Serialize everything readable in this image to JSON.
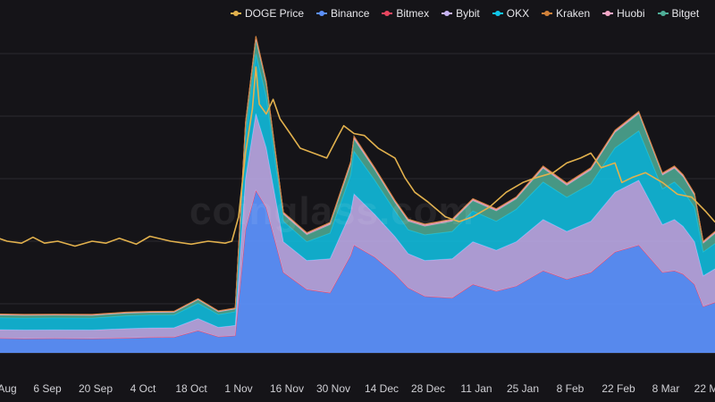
{
  "watermark": "coinglass.com",
  "legend": [
    {
      "name": "DOGE Price",
      "color": "#e2b14d"
    },
    {
      "name": "Binance",
      "color": "#5b8ff9"
    },
    {
      "name": "Bitmex",
      "color": "#e8465f"
    },
    {
      "name": "Bybit",
      "color": "#c6b2f2"
    },
    {
      "name": "OKX",
      "color": "#11c4e8"
    },
    {
      "name": "Kraken",
      "color": "#d0813a"
    },
    {
      "name": "Huobi",
      "color": "#f4a6c6"
    },
    {
      "name": "Bitget",
      "color": "#4fae98"
    }
  ],
  "chart_data": {
    "type": "area",
    "x_ticks": [
      "Aug",
      "6 Sep",
      "20 Sep",
      "4 Oct",
      "18 Oct",
      "1 Nov",
      "16 Nov",
      "30 Nov",
      "14 Dec",
      "28 Dec",
      "11 Jan",
      "25 Jan",
      "8 Feb",
      "22 Feb",
      "8 Mar",
      "22 M"
    ],
    "grid": true,
    "legend_position": "top",
    "stack_order": [
      "Binance",
      "Bitmex",
      "Bybit",
      "OKX",
      "Bitget",
      "Huobi",
      "Kraken"
    ],
    "days": [
      -9,
      -3,
      6,
      16,
      27,
      37,
      44,
      51,
      58,
      64,
      69,
      72,
      75,
      78,
      83,
      90,
      97,
      103,
      104,
      110,
      116,
      120,
      125,
      133,
      139,
      146,
      152,
      160,
      167,
      174,
      181,
      188,
      195,
      199,
      202,
      206,
      209,
      214,
      219,
      224,
      229,
      233
    ],
    "series": [
      {
        "name": "Binance",
        "values": [
          0.89,
          0.85,
          0.83,
          0.84,
          0.83,
          0.86,
          0.9,
          0.91,
          1.3,
          0.94,
          1.0,
          7.2,
          9.5,
          8.5,
          4.7,
          3.7,
          3.5,
          5.7,
          6.3,
          5.6,
          4.6,
          3.8,
          3.3,
          3.2,
          4.0,
          3.6,
          3.9,
          4.8,
          4.3,
          4.7,
          5.9,
          6.3,
          4.7,
          4.8,
          4.6,
          4.0,
          2.7,
          3.0,
          2.4,
          2.7,
          2.3,
          2.5
        ]
      },
      {
        "name": "Bitmex",
        "values": [
          0.01,
          0.01,
          0.01,
          0.01,
          0.01,
          0.01,
          0.01,
          0.01,
          0.01,
          0.01,
          0.01,
          0.03,
          0.03,
          0.03,
          0.02,
          0.02,
          0.02,
          0.02,
          0.02,
          0.02,
          0.02,
          0.02,
          0.02,
          0.02,
          0.02,
          0.02,
          0.02,
          0.02,
          0.02,
          0.02,
          0.02,
          0.02,
          0.02,
          0.02,
          0.02,
          0.02,
          0.02,
          0.02,
          0.02,
          0.02,
          0.02,
          0.02
        ]
      },
      {
        "name": "Bybit",
        "values": [
          0.5,
          0.5,
          0.5,
          0.5,
          0.5,
          0.55,
          0.55,
          0.55,
          0.7,
          0.55,
          0.6,
          3.0,
          4.5,
          3.5,
          1.8,
          1.7,
          2.0,
          2.5,
          3.0,
          2.5,
          2.2,
          2.0,
          2.1,
          2.3,
          2.5,
          2.4,
          2.6,
          3.0,
          2.8,
          3.0,
          3.5,
          3.8,
          2.8,
          3.0,
          2.8,
          2.5,
          1.8,
          2.0,
          1.8,
          1.9,
          1.8,
          1.9
        ]
      },
      {
        "name": "OKX",
        "values": [
          0.7,
          0.7,
          0.7,
          0.7,
          0.7,
          0.75,
          0.75,
          0.75,
          0.9,
          0.75,
          0.8,
          2.5,
          3.5,
          3.0,
          1.2,
          1.1,
          1.5,
          2.2,
          2.5,
          2.0,
          1.5,
          1.4,
          1.5,
          1.6,
          1.8,
          1.7,
          1.9,
          2.2,
          2.0,
          2.2,
          2.6,
          2.9,
          2.1,
          2.2,
          2.1,
          2.0,
          1.4,
          1.5,
          1.4,
          1.4,
          1.3,
          1.4
        ]
      },
      {
        "name": "Bitget",
        "values": [
          0.15,
          0.15,
          0.15,
          0.15,
          0.15,
          0.15,
          0.15,
          0.15,
          0.2,
          0.15,
          0.15,
          0.6,
          0.8,
          0.7,
          0.4,
          0.4,
          0.5,
          0.6,
          0.7,
          0.6,
          0.5,
          0.5,
          0.5,
          0.6,
          0.6,
          0.6,
          0.6,
          0.8,
          0.7,
          0.8,
          0.9,
          1.0,
          0.8,
          0.8,
          0.8,
          0.7,
          0.5,
          0.6,
          0.5,
          0.5,
          0.5,
          0.5
        ]
      },
      {
        "name": "Huobi",
        "values": [
          0.05,
          0.05,
          0.05,
          0.05,
          0.05,
          0.05,
          0.05,
          0.05,
          0.05,
          0.05,
          0.05,
          0.15,
          0.2,
          0.15,
          0.1,
          0.1,
          0.1,
          0.15,
          0.15,
          0.1,
          0.1,
          0.1,
          0.1,
          0.1,
          0.1,
          0.1,
          0.1,
          0.1,
          0.1,
          0.1,
          0.1,
          0.1,
          0.1,
          0.1,
          0.1,
          0.1,
          0.1,
          0.1,
          0.1,
          0.1,
          0.1,
          0.1
        ]
      },
      {
        "name": "Kraken",
        "values": [
          0.02,
          0.02,
          0.02,
          0.02,
          0.02,
          0.02,
          0.02,
          0.02,
          0.02,
          0.02,
          0.02,
          0.05,
          0.05,
          0.05,
          0.03,
          0.03,
          0.03,
          0.04,
          0.04,
          0.04,
          0.03,
          0.03,
          0.03,
          0.03,
          0.03,
          0.03,
          0.03,
          0.04,
          0.04,
          0.04,
          0.04,
          0.04,
          0.04,
          0.04,
          0.04,
          0.04,
          0.03,
          0.03,
          0.03,
          0.03,
          0.03,
          0.03
        ]
      }
    ],
    "price_series": {
      "name": "DOGE Price",
      "days": [
        -9,
        -5,
        0,
        5,
        9,
        13,
        17,
        22,
        27,
        31,
        35,
        40,
        44,
        50,
        56,
        61,
        66,
        68,
        70,
        72,
        74,
        75,
        76,
        78,
        80,
        82,
        85,
        88,
        92,
        96,
        99,
        101,
        104,
        107,
        111,
        116,
        119,
        122,
        126,
        131,
        135,
        139,
        144,
        149,
        154,
        158,
        163,
        167,
        171,
        174,
        177,
        181,
        183,
        186,
        190,
        195,
        200,
        205,
        210,
        213,
        216,
        219,
        222,
        227,
        231,
        233
      ],
      "values": [
        0.11,
        0.105,
        0.1,
        0.098,
        0.104,
        0.098,
        0.1,
        0.095,
        0.1,
        0.098,
        0.103,
        0.097,
        0.105,
        0.1,
        0.097,
        0.1,
        0.098,
        0.1,
        0.125,
        0.19,
        0.235,
        0.278,
        0.24,
        0.23,
        0.245,
        0.225,
        0.21,
        0.195,
        0.19,
        0.185,
        0.205,
        0.218,
        0.21,
        0.208,
        0.195,
        0.185,
        0.165,
        0.15,
        0.14,
        0.125,
        0.12,
        0.125,
        0.135,
        0.15,
        0.16,
        0.165,
        0.17,
        0.18,
        0.185,
        0.19,
        0.175,
        0.18,
        0.16,
        0.165,
        0.17,
        0.16,
        0.148,
        0.145,
        0.13,
        0.12,
        0.115,
        0.115,
        0.125,
        0.13,
        0.12,
        0.125
      ]
    }
  }
}
